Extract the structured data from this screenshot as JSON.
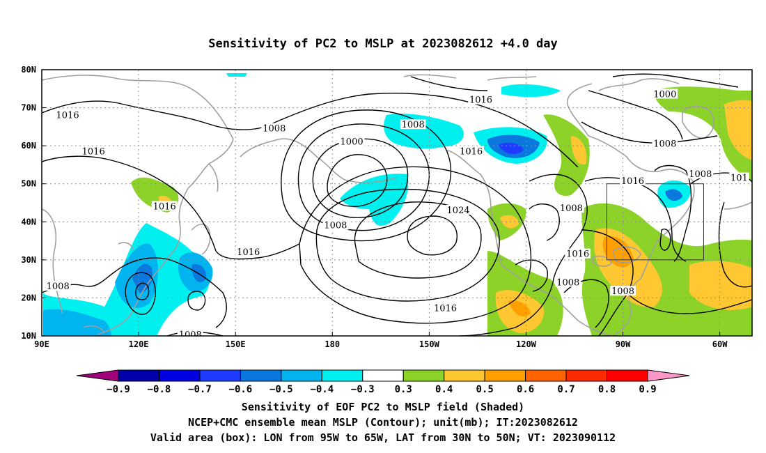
{
  "title": "Sensitivity of PC2 to MSLP at 2023082612 +4.0 day",
  "map": {
    "lon_range": [
      90,
      310
    ],
    "lat_range": [
      10,
      80
    ],
    "lon_ticks": [
      {
        "value": 90,
        "label": "90E"
      },
      {
        "value": 120,
        "label": "120E"
      },
      {
        "value": 150,
        "label": "150E"
      },
      {
        "value": 180,
        "label": "180"
      },
      {
        "value": 210,
        "label": "150W"
      },
      {
        "value": 240,
        "label": "120W"
      },
      {
        "value": 270,
        "label": "90W"
      },
      {
        "value": 300,
        "label": "60W"
      }
    ],
    "lat_ticks": [
      {
        "value": 10,
        "label": "10N"
      },
      {
        "value": 20,
        "label": "20N"
      },
      {
        "value": 30,
        "label": "30N"
      },
      {
        "value": 40,
        "label": "40N"
      },
      {
        "value": 50,
        "label": "50N"
      },
      {
        "value": 60,
        "label": "60N"
      },
      {
        "value": 70,
        "label": "70N"
      },
      {
        "value": 80,
        "label": "80N"
      }
    ],
    "grid": true,
    "valid_box": {
      "lon_min": 265,
      "lon_max": 295,
      "lat_min": 30,
      "lat_max": 50
    },
    "contour_labels": [
      {
        "text": "1016",
        "lon": 98,
        "lat": 68.0
      },
      {
        "text": "1008",
        "lon": 162,
        "lat": 64.5
      },
      {
        "text": "1016",
        "lon": 106,
        "lat": 58.5
      },
      {
        "text": "1016",
        "lon": 128,
        "lat": 44.0
      },
      {
        "text": "1016",
        "lon": 154,
        "lat": 32.0
      },
      {
        "text": "1008",
        "lon": 95,
        "lat": 23.0
      },
      {
        "text": "1008",
        "lon": 136,
        "lat": 10.3
      },
      {
        "text": "1000",
        "lon": 186,
        "lat": 61.0
      },
      {
        "text": "1008",
        "lon": 181,
        "lat": 39.0
      },
      {
        "text": "1008",
        "lon": 205,
        "lat": 65.5
      },
      {
        "text": "1016",
        "lon": 226,
        "lat": 72.0
      },
      {
        "text": "1016",
        "lon": 223,
        "lat": 58.5
      },
      {
        "text": "1024",
        "lon": 219,
        "lat": 43.0
      },
      {
        "text": "1016",
        "lon": 215,
        "lat": 17.2
      },
      {
        "text": "1008",
        "lon": 254,
        "lat": 43.5
      },
      {
        "text": "1016",
        "lon": 256,
        "lat": 31.5
      },
      {
        "text": "1008",
        "lon": 253,
        "lat": 24.0
      },
      {
        "text": "1016",
        "lon": 273,
        "lat": 50.7
      },
      {
        "text": "1008",
        "lon": 270,
        "lat": 21.7
      },
      {
        "text": "1000",
        "lon": 283,
        "lat": 73.5
      },
      {
        "text": "1008",
        "lon": 283,
        "lat": 60.5
      },
      {
        "text": "1008",
        "lon": 294,
        "lat": 52.5
      },
      {
        "text": "101",
        "lon": 306,
        "lat": 51.5
      }
    ]
  },
  "colorbar": {
    "colors": [
      "#a0007c",
      "#0000a8",
      "#0000e0",
      "#1e3cff",
      "#0a78dc",
      "#00b4f0",
      "#00f0f0",
      "#ffffff",
      "#8cd228",
      "#ffc832",
      "#ffa000",
      "#ff6400",
      "#ff2a00",
      "#ff0000",
      "#ff96c8"
    ],
    "labels": [
      "−0.9",
      "−0.8",
      "−0.7",
      "−0.6",
      "−0.5",
      "−0.4",
      "−0.3",
      "0.3",
      "0.4",
      "0.5",
      "0.6",
      "0.7",
      "0.8",
      "0.9"
    ]
  },
  "footer": {
    "line1": "Sensitivity of EOF PC2 to MSLP field (Shaded)",
    "line2": "NCEP+CMC ensemble mean MSLP (Contour); unit(mb); IT:2023082612",
    "line3": "Valid area (box): LON from 95W to 65W, LAT from 30N to 50N; VT: 2023090112"
  }
}
